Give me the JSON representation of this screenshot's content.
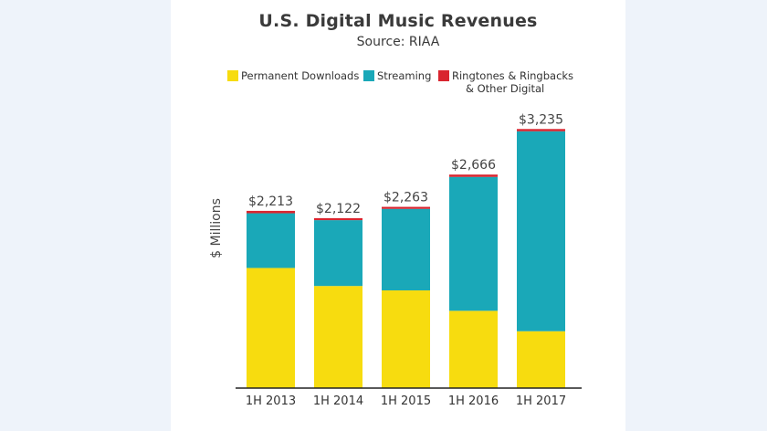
{
  "chart_data": {
    "type": "bar",
    "stacked": true,
    "title": "U.S. Digital Music Revenues",
    "subtitle": "Source: RIAA",
    "ylabel": "$ Millions",
    "xlabel": "",
    "ylim": [
      0,
      3500
    ],
    "grid": false,
    "legend_position": "top",
    "categories": [
      "1H 2013",
      "1H 2014",
      "1H 2015",
      "1H 2016",
      "1H 2017"
    ],
    "totals": [
      2213,
      2122,
      2263,
      2666,
      3235
    ],
    "total_labels": [
      "$2,213",
      "$2,122",
      "$2,263",
      "$2,666",
      "$3,235"
    ],
    "series": [
      {
        "name": "Permanent Downloads",
        "color": "#f7dc0f",
        "values": [
          1500,
          1275,
          1220,
          965,
          710
        ]
      },
      {
        "name": "Streaming",
        "color": "#1aa8b8",
        "values": [
          683,
          822,
          1018,
          1672,
          2497
        ]
      },
      {
        "name": "Ringtones & Ringbacks & Other Digital",
        "legend_lines": [
          "Ringtones & Ringbacks",
          "& Other Digital"
        ],
        "color": "#d9252f",
        "values": [
          30,
          25,
          25,
          29,
          28
        ]
      }
    ]
  }
}
